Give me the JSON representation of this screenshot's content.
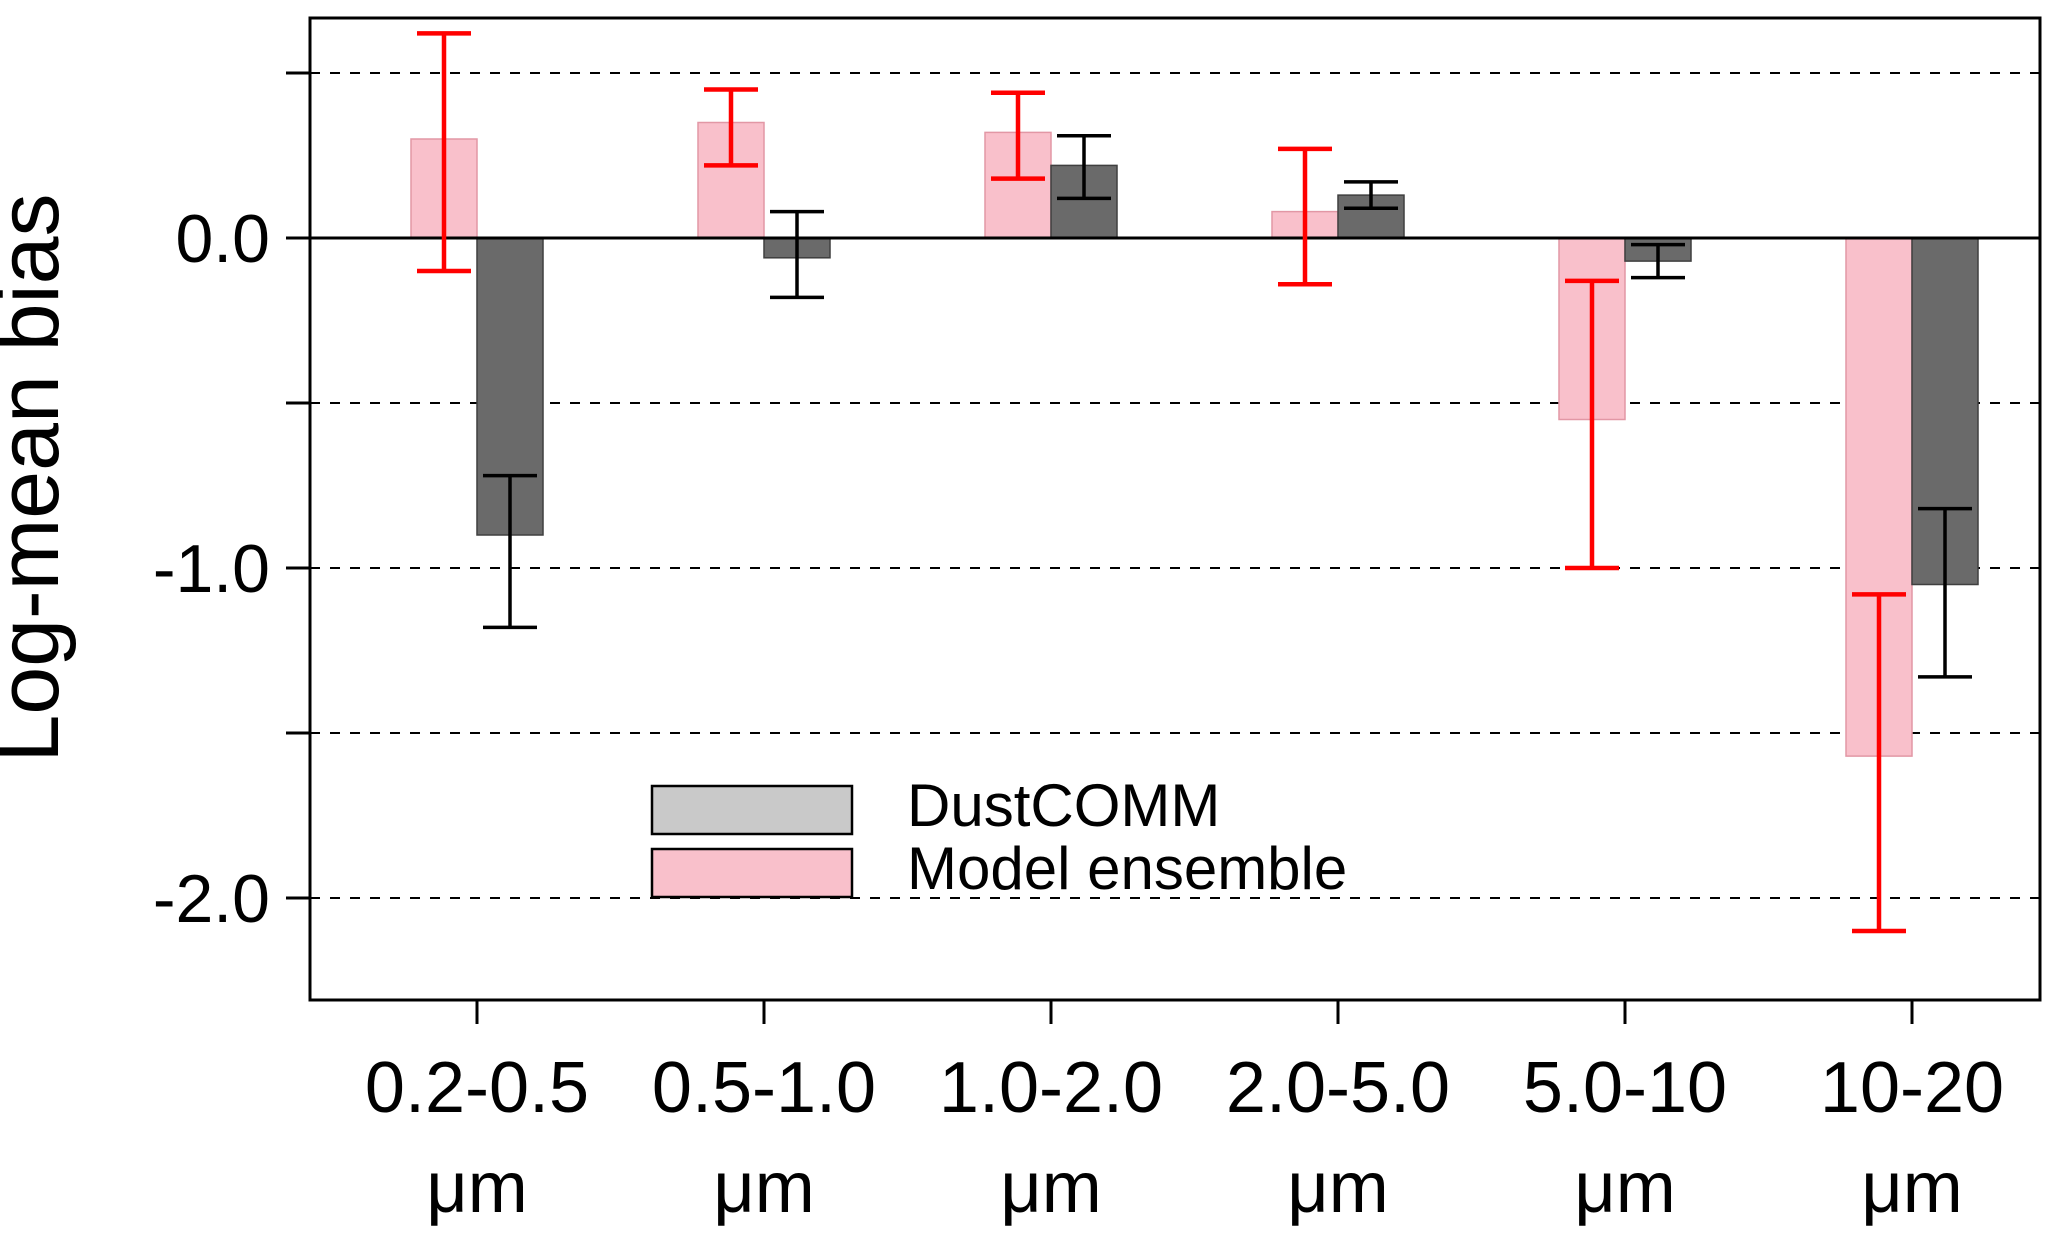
{
  "chart_data": {
    "type": "bar",
    "title": "",
    "ylabel": "Log-mean bias",
    "xlabel": "",
    "categories": [
      "0.2-0.5",
      "0.5-1.0",
      "1.0-2.0",
      "2.0-5.0",
      "5.0-10",
      "10-20"
    ],
    "category_unit": "μm",
    "ylim": [
      -2.31,
      0.67
    ],
    "zero_line": 0.0,
    "gridlines_dashed": [
      0.5,
      -0.5,
      -1.0,
      -1.5,
      -2.0
    ],
    "grid": "dashed-horizontal",
    "yticks": [
      {
        "value": 0.5,
        "label": ""
      },
      {
        "value": 0.0,
        "label": "0.0"
      },
      {
        "value": -0.5,
        "label": ""
      },
      {
        "value": -1.0,
        "label": "-1.0"
      },
      {
        "value": -1.5,
        "label": ""
      },
      {
        "value": -2.0,
        "label": "-2.0"
      }
    ],
    "series": [
      {
        "name": "Model ensemble",
        "color": "#f9c0cb",
        "edge_color": "#e297a5",
        "error_color": "#ff0000",
        "values": [
          0.3,
          0.35,
          0.32,
          0.08,
          -0.55,
          -1.57
        ],
        "error_low": [
          -0.1,
          0.22,
          0.18,
          -0.14,
          -1.0,
          -2.1
        ],
        "error_high": [
          0.62,
          0.45,
          0.44,
          0.27,
          -0.13,
          -1.08
        ]
      },
      {
        "name": "DustCOMM",
        "color": "#6a6a6a",
        "edge_color": "#3f3f3f",
        "error_color": "#000000",
        "values": [
          -0.9,
          -0.06,
          0.22,
          0.13,
          -0.07,
          -1.05
        ],
        "error_low": [
          -1.18,
          -0.18,
          0.12,
          0.09,
          -0.12,
          -1.33
        ],
        "error_high": [
          -0.72,
          0.08,
          0.31,
          0.17,
          -0.02,
          -0.82
        ]
      }
    ],
    "legend": {
      "position": "inside-bottom-center",
      "entries": [
        {
          "label": "DustCOMM",
          "swatch_color": "#c9c9c9"
        },
        {
          "label": "Model ensemble",
          "swatch_color": "#f9c0cb"
        }
      ]
    }
  }
}
